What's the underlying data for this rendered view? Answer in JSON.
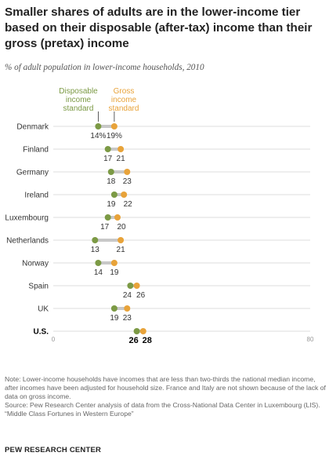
{
  "title": "Smaller shares of adults are in the lower-income tier based on their disposable (after-tax) income than their gross (pretax) income",
  "subtitle": "% of adult population in lower-income households, 2010",
  "colors": {
    "disposable": "#7c9a45",
    "gross": "#e8a33a",
    "connector": "#c8c8c8",
    "grid": "#dcdcdc"
  },
  "chart_data": {
    "type": "dot",
    "legend": {
      "disposable": "Disposable income standard",
      "gross": "Gross income standard"
    },
    "xlim": [
      0,
      80
    ],
    "x_ticks": [
      "0",
      "80"
    ],
    "categories": [
      "Denmark",
      "Finland",
      "Germany",
      "Ireland",
      "Luxembourg",
      "Netherlands",
      "Norway",
      "Spain",
      "UK",
      "U.S."
    ],
    "series": [
      {
        "name": "Disposable income standard",
        "values": [
          14,
          17,
          18,
          19,
          17,
          13,
          14,
          24,
          19,
          26
        ]
      },
      {
        "name": "Gross income standard",
        "values": [
          19,
          21,
          23,
          22,
          20,
          21,
          19,
          26,
          23,
          28
        ]
      }
    ],
    "value_labels": {
      "disposable": [
        "14%",
        "17",
        "18",
        "19",
        "17",
        "13",
        "14",
        "24",
        "19",
        "26"
      ],
      "gross": [
        "19%",
        "21",
        "23",
        "22",
        "20",
        "21",
        "19",
        "26",
        "23",
        "28"
      ]
    }
  },
  "notes": {
    "note": "Note: Lower-income households have incomes that are less than two-thirds the national median income, after incomes have been adjusted for household size. France and Italy are not shown because of the lack of data on gross income.",
    "source": "Source: Pew Research Center analysis of data from the Cross-National Data Center in Luxembourg (LIS).",
    "report": "“Middle Class Fortunes in Western Europe”"
  },
  "brand": "PEW RESEARCH CENTER"
}
